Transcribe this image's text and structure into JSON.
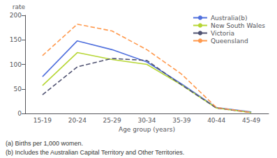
{
  "chart_data": {
    "type": "line",
    "categories": [
      "15-19",
      "20-24",
      "25-29",
      "30-34",
      "35-39",
      "40-44",
      "45-49"
    ],
    "series": [
      {
        "name": "Australia(b)",
        "line_style": "solid",
        "values": [
          75,
          148,
          130,
          105,
          60,
          12,
          3
        ]
      },
      {
        "name": "New South Wales",
        "line_style": "solid",
        "values": [
          57,
          124,
          110,
          100,
          58,
          11,
          2
        ]
      },
      {
        "name": "Victoria",
        "line_style": "dashed",
        "values": [
          38,
          95,
          112,
          108,
          58,
          11,
          2
        ]
      },
      {
        "name": "Queensland",
        "line_style": "dashed",
        "values": [
          118,
          182,
          168,
          130,
          80,
          12,
          2
        ]
      }
    ],
    "xlabel": "Age group (years)",
    "ylabel": "rate",
    "annotations": [
      "(a) Births per 1,000 women.",
      "(b) Includes the Australian Capital Territory and Other Territories."
    ],
    "ylim": [
      0,
      200
    ],
    "yticks": [
      0,
      50,
      100,
      150,
      200
    ],
    "grid": false,
    "legend": "top-right"
  }
}
